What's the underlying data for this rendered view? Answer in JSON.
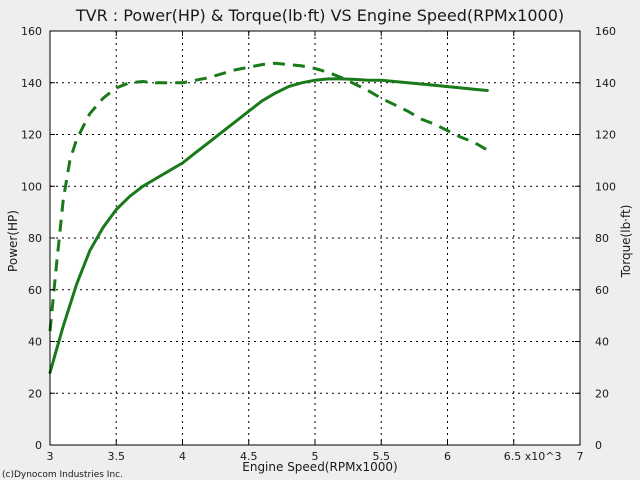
{
  "chart_data": {
    "type": "line",
    "title": "TVR : Power(HP) & Torque(lb·ft) VS Engine Speed(RPMx1000)",
    "xlabel": "Engine Speed(RPMx1000)",
    "ylabel": "Power(HP)",
    "y2label": "Torque(lb·ft)",
    "x_tick_labels": [
      "3",
      "3.5",
      "4",
      "4.5",
      "5",
      "5.5",
      "6",
      "6.5 x10^3",
      "7"
    ],
    "x_ticks": [
      3,
      3.5,
      4,
      4.5,
      5,
      5.5,
      6,
      6.5,
      7
    ],
    "y_ticks": [
      0,
      20,
      40,
      60,
      80,
      100,
      120,
      140,
      160
    ],
    "y2_ticks": [
      0,
      20,
      40,
      60,
      80,
      100,
      120,
      140,
      160
    ],
    "xlim": [
      3,
      7
    ],
    "ylim": [
      0,
      160
    ],
    "y2lim": [
      0,
      160
    ],
    "grid": true,
    "series": [
      {
        "line": "solid",
        "color": "#1a7a1a",
        "x": [
          3.0,
          3.05,
          3.1,
          3.2,
          3.3,
          3.4,
          3.5,
          3.6,
          3.7,
          3.8,
          3.9,
          4.0,
          4.1,
          4.2,
          4.3,
          4.4,
          4.5,
          4.6,
          4.7,
          4.8,
          4.9,
          5.0,
          5.1,
          5.2,
          5.3,
          5.4,
          5.5,
          5.6,
          5.7,
          5.8,
          5.9,
          6.0,
          6.1,
          6.2,
          6.3
        ],
        "values": [
          28,
          37,
          46,
          62,
          75,
          84,
          91,
          96,
          100,
          103,
          106,
          109,
          113,
          117,
          121,
          125,
          129,
          133,
          136,
          138.5,
          140,
          141,
          141.5,
          141.5,
          141.3,
          141,
          141,
          140.5,
          140,
          139.5,
          139,
          138.5,
          138,
          137.5,
          137
        ]
      },
      {
        "line": "dashed",
        "color": "#1a7a1a",
        "x": [
          3.0,
          3.05,
          3.1,
          3.15,
          3.2,
          3.3,
          3.4,
          3.5,
          3.6,
          3.7,
          3.8,
          3.9,
          4.0,
          4.1,
          4.2,
          4.3,
          4.4,
          4.5,
          4.6,
          4.7,
          4.8,
          4.9,
          5.0,
          5.1,
          5.2,
          5.3,
          5.4,
          5.5,
          5.6,
          5.7,
          5.8,
          5.9,
          6.0,
          6.1,
          6.2,
          6.3
        ],
        "values": [
          44,
          70,
          95,
          110,
          118,
          128,
          134,
          138,
          140,
          140.5,
          140,
          140,
          140,
          141,
          142,
          143.5,
          145,
          146,
          147,
          147.5,
          147,
          146.5,
          145.5,
          144,
          142,
          139.5,
          137,
          134,
          131.5,
          129,
          126,
          124,
          121.5,
          119,
          117,
          114
        ]
      }
    ]
  },
  "footer": {
    "copyright": "(c)Dynocom Industries Inc."
  }
}
